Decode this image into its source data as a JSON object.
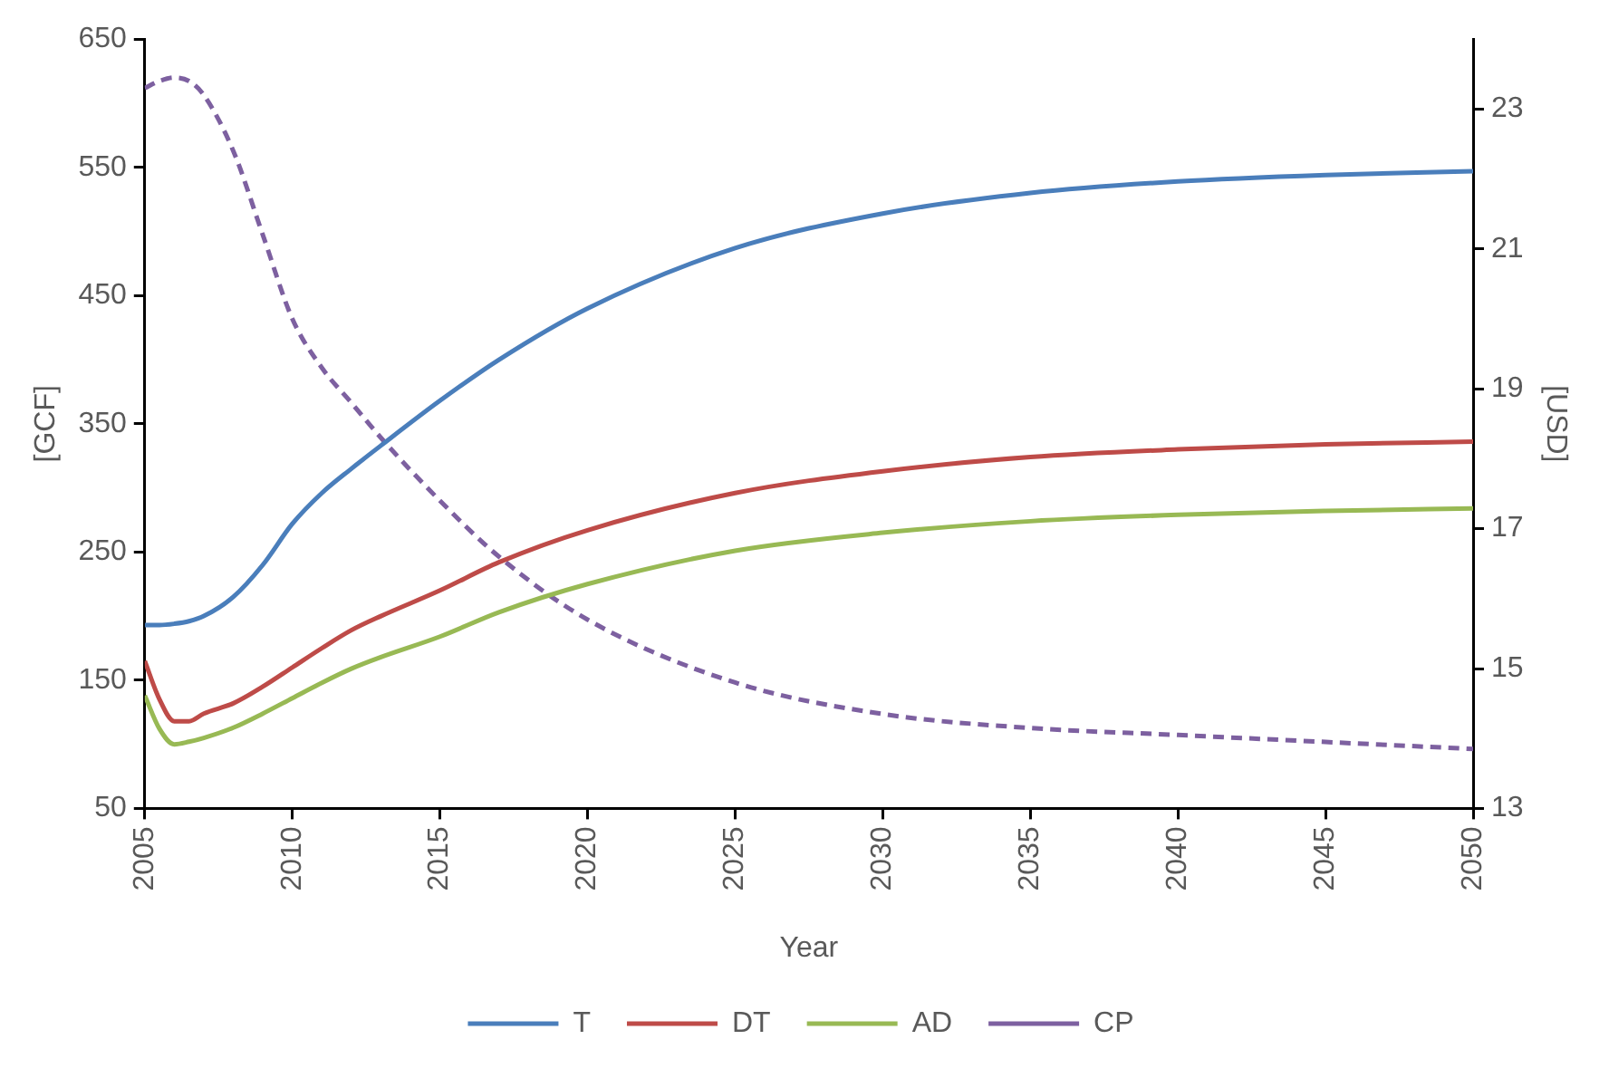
{
  "chart_data": {
    "type": "line",
    "xlabel": "Year",
    "ylabel": "[GCF]",
    "y2label": "[USD]",
    "x": [
      2005,
      2005.5,
      2006,
      2006.5,
      2007,
      2008,
      2009,
      2010,
      2011,
      2012,
      2013,
      2015,
      2017,
      2020,
      2025,
      2030,
      2035,
      2040,
      2045,
      2050
    ],
    "series": [
      {
        "name": "T",
        "color": "#4a7ebb",
        "values": [
          193,
          193,
          194,
          196,
          200,
          215,
          240,
          272,
          296,
          315,
          333,
          368,
          400,
          440,
          487,
          514,
          530,
          539,
          544,
          547
        ]
      },
      {
        "name": "DT",
        "color": "#be4b48",
        "values": [
          165,
          135,
          118,
          118,
          124,
          132,
          145,
          160,
          175,
          189,
          200,
          220,
          242,
          267,
          296,
          313,
          324,
          330,
          334,
          336
        ]
      },
      {
        "name": "AD",
        "color": "#98b954",
        "values": [
          138,
          112,
          100,
          102,
          105,
          113,
          124,
          136,
          148,
          159,
          168,
          184,
          203,
          225,
          251,
          265,
          274,
          279,
          282,
          284
        ]
      },
      {
        "name": "CP",
        "color": "#7d60a0",
        "axis": "y2",
        "line_style": "dashed",
        "values": [
          23.3,
          23.4,
          23.45,
          23.4,
          23.2,
          22.4,
          21.2,
          20.0,
          19.3,
          18.8,
          18.3,
          17.4,
          16.6,
          15.7,
          14.8,
          14.35,
          14.15,
          14.05,
          13.95,
          13.85
        ]
      }
    ],
    "xlim": [
      2005,
      2050
    ],
    "xticks": [
      2005,
      2010,
      2015,
      2020,
      2025,
      2030,
      2035,
      2040,
      2045,
      2050
    ],
    "ylim": [
      50,
      650
    ],
    "yticks": [
      50,
      150,
      250,
      350,
      450,
      550,
      650
    ],
    "y2lim": [
      13,
      24
    ],
    "y2ticks": [
      13,
      15,
      17,
      19,
      21,
      23
    ],
    "grid": false,
    "legend": "bottom",
    "marker": "none"
  }
}
